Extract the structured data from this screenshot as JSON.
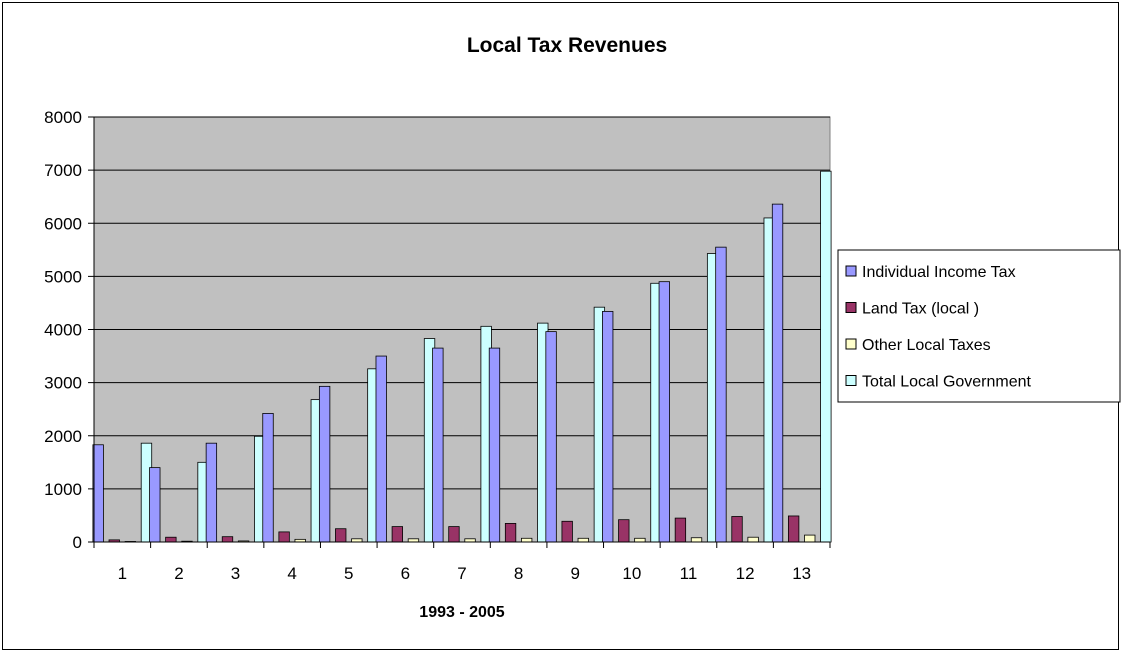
{
  "chart_data": {
    "type": "bar",
    "title": "Local Tax Revenues",
    "xlabel": "1993 - 2005",
    "ylabel": "",
    "ylim": [
      0,
      8000
    ],
    "yticks": [
      0,
      1000,
      2000,
      3000,
      4000,
      5000,
      6000,
      7000,
      8000
    ],
    "grid": true,
    "legend_position": "right",
    "plot_background": "#c0c0c0",
    "categories": [
      "1",
      "2",
      "3",
      "4",
      "5",
      "6",
      "7",
      "8",
      "9",
      "10",
      "11",
      "12",
      "13"
    ],
    "series": [
      {
        "name": "Individual Income Tax",
        "color": "#9999ff",
        "values": [
          1830,
          1400,
          1860,
          2420,
          2930,
          3500,
          3650,
          3650,
          3960,
          4340,
          4900,
          5550,
          6360
        ]
      },
      {
        "name": "Land Tax (local )",
        "color": "#993366",
        "values": [
          40,
          90,
          100,
          190,
          250,
          290,
          290,
          350,
          390,
          420,
          450,
          480,
          490
        ]
      },
      {
        "name": "Other Local Taxes",
        "color": "#ffffcc",
        "values": [
          10,
          15,
          20,
          50,
          60,
          60,
          60,
          70,
          70,
          70,
          80,
          90,
          130
        ]
      },
      {
        "name": "Total Local Government",
        "color": "#ccffff",
        "values": [
          1860,
          1500,
          1990,
          2680,
          3260,
          3830,
          4060,
          4120,
          4420,
          4870,
          5430,
          6100,
          6980
        ]
      }
    ]
  }
}
